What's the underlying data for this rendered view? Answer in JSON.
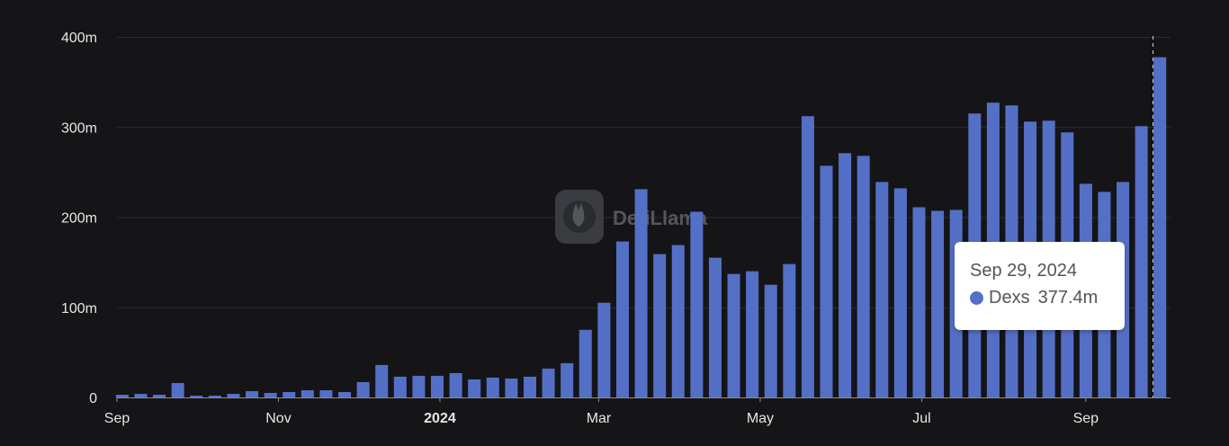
{
  "chart_data": {
    "type": "bar",
    "y_ticks": [
      "0",
      "100m",
      "200m",
      "300m",
      "400m"
    ],
    "x_ticks": [
      "Sep",
      "Nov",
      "2024",
      "Mar",
      "May",
      "Jul",
      "Sep"
    ],
    "ylim": [
      0,
      400
    ],
    "grid": true,
    "series": [
      {
        "name": "Dexs",
        "color": "#5470c6",
        "x": [
          "2023-09-03",
          "2023-09-10",
          "2023-09-17",
          "2023-09-24",
          "2023-10-01",
          "2023-10-08",
          "2023-10-15",
          "2023-10-22",
          "2023-10-29",
          "2023-11-05",
          "2023-11-12",
          "2023-11-19",
          "2023-11-26",
          "2023-12-03",
          "2023-12-10",
          "2023-12-17",
          "2023-12-24",
          "2023-12-31",
          "2024-01-07",
          "2024-01-14",
          "2024-01-21",
          "2024-01-28",
          "2024-02-04",
          "2024-02-11",
          "2024-02-18",
          "2024-02-25",
          "2024-03-03",
          "2024-03-10",
          "2024-03-17",
          "2024-03-24",
          "2024-03-31",
          "2024-04-07",
          "2024-04-14",
          "2024-04-21",
          "2024-04-28",
          "2024-05-05",
          "2024-05-12",
          "2024-05-19",
          "2024-05-26",
          "2024-06-02",
          "2024-06-09",
          "2024-06-16",
          "2024-06-23",
          "2024-06-30",
          "2024-07-07",
          "2024-07-14",
          "2024-07-21",
          "2024-07-28",
          "2024-08-04",
          "2024-08-11",
          "2024-08-18",
          "2024-08-25",
          "2024-09-01",
          "2024-09-08",
          "2024-09-15",
          "2024-09-22",
          "2024-09-29"
        ],
        "values": [
          3,
          4,
          3,
          16,
          2,
          2,
          4,
          7,
          5,
          6,
          8,
          8,
          6,
          17,
          36,
          23,
          24,
          24,
          27,
          20,
          22,
          21,
          23,
          32,
          38,
          75,
          105,
          173,
          231,
          159,
          169,
          206,
          155,
          137,
          140,
          125,
          148,
          312,
          257,
          271,
          268,
          239,
          232,
          211,
          207,
          208,
          315,
          327,
          324,
          306,
          307,
          294,
          237,
          228,
          239,
          301,
          377.4
        ]
      }
    ],
    "tooltip": {
      "date": "Sep 29, 2024",
      "series_name": "Dexs",
      "value": "377.4m"
    },
    "watermark": "DefiLlama"
  }
}
